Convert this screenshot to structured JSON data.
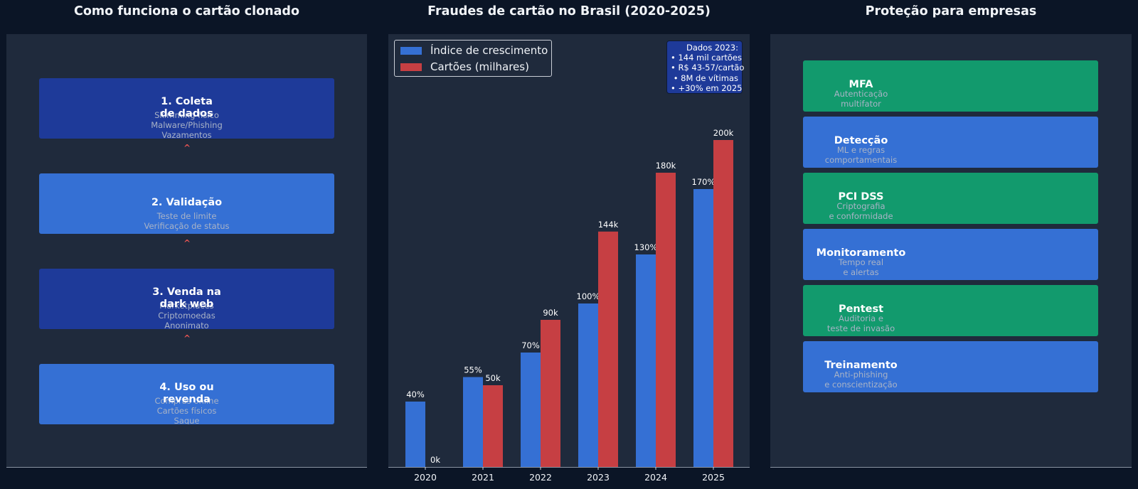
{
  "titles": {
    "left": "Como funciona o cartão clonado",
    "center": "Fraudes de cartão no Brasil (2020-2025)",
    "right": "Proteção para empresas"
  },
  "flow_steps": [
    {
      "title": "1. Coleta\nde dados",
      "desc": "Skimming físico\nMalware/Phishing\nVazamentos"
    },
    {
      "title": "2. Validação",
      "desc": "Teste de limite\nVerificação de status"
    },
    {
      "title": "3. Venda na\ndark web",
      "desc": "Marketplaces\nCriptomoedas\nAnonimato"
    },
    {
      "title": "4. Uso ou\nrevenda",
      "desc": "Compras online\nCartões físicos\nSaque"
    }
  ],
  "protections": [
    {
      "title": "MFA",
      "desc": "Autenticação\nmultifator"
    },
    {
      "title": "Detecção",
      "desc": "ML e regras\ncomportamentais"
    },
    {
      "title": "PCI DSS",
      "desc": "Criptografia\ne conformidade"
    },
    {
      "title": "Monitoramento",
      "desc": "Tempo real\ne alertas"
    },
    {
      "title": "Pentest",
      "desc": "Auditoria e\nteste de invasão"
    },
    {
      "title": "Treinamento",
      "desc": "Anti-phishing\ne conscientização"
    }
  ],
  "colors": {
    "step_dark": "#1e3a99",
    "step_light": "#3570d4",
    "prot_green": "#129a6d",
    "growth_bar": "#3570d4",
    "cards_bar": "#c63f43",
    "arrow": "#e05252"
  },
  "info_box": {
    "lines": [
      "Dados 2023:",
      "• 144 mil cartões",
      "• R$ 43-57/cartão",
      "• 8M de vítimas",
      "• +30% em 2025"
    ]
  },
  "chart_data": {
    "type": "bar",
    "title": "Fraudes de cartão no Brasil (2020-2025)",
    "categories": [
      "2020",
      "2021",
      "2022",
      "2023",
      "2024",
      "2025"
    ],
    "series": [
      {
        "name": "Índice de crescimento",
        "values": [
          40,
          55,
          70,
          100,
          130,
          170
        ],
        "labels": [
          "40%",
          "55%",
          "70%",
          "100%",
          "130%",
          "170%"
        ]
      },
      {
        "name": "Cartões (milhares)",
        "values": [
          0,
          50,
          90,
          144,
          180,
          200
        ],
        "labels": [
          "0k",
          "50k",
          "90k",
          "144k",
          "180k",
          "200k"
        ]
      }
    ],
    "ylim": [
      0,
      240
    ],
    "grid": false,
    "legend": "top-left",
    "xlabel": "",
    "ylabel": ""
  }
}
